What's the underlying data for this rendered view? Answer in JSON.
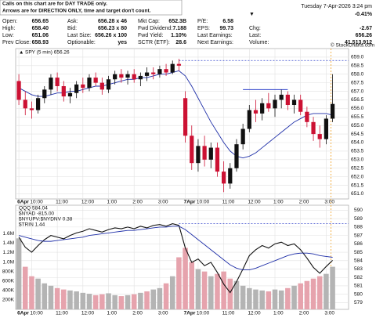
{
  "header": {
    "notice": [
      "Calls on this chart are for DAY TRADE only.",
      "Arrows are for DIRECTION ONLY, time and target don't count."
    ],
    "datetime": "Tuesday  7-Apr-2026  3:24 pm",
    "change_pct": "-0.41%",
    "fields": [
      [
        [
          "Open:",
          "656.65"
        ],
        [
          "Ask:",
          "656.28 x 46"
        ],
        [
          "Mkt Cap:",
          "652.3B"
        ],
        [
          "P/E:",
          "6.58"
        ]
      ],
      [
        [
          "High:",
          "658.40"
        ],
        [
          "Bid:",
          "656.23 x 80"
        ],
        [
          "Fwd Dividend:",
          "7.188"
        ],
        [
          "EPS:",
          "99.73"
        ]
      ],
      [
        [
          "Low:",
          "651.06"
        ],
        [
          "Last Size:",
          "656.26 x 100"
        ],
        [
          "Fwd Yield:",
          "1.10%"
        ],
        [
          "Last Earnings:",
          ""
        ]
      ],
      [
        [
          "Prev Close:",
          "658.93"
        ],
        [
          "Optionable:",
          "yes"
        ],
        [
          "SCTR (ETF):",
          "28.6"
        ],
        [
          "Next Earnings:",
          ""
        ]
      ]
    ],
    "right_fields": [
      [
        "Chg:",
        "-2.67"
      ],
      [
        "Last:",
        "656.26"
      ],
      [
        "Volume:",
        "41,513,912"
      ]
    ],
    "watermark": "© StockCharts.com"
  },
  "chart_data": [
    {
      "type": "candlestick",
      "legend": "SPY (5 min) 656.26",
      "categories": [
        "6Apr",
        null,
        "10:00",
        null,
        null,
        null,
        "11:00",
        null,
        null,
        null,
        "12:00",
        null,
        null,
        null,
        "1:00",
        null,
        null,
        null,
        "2:00",
        null,
        null,
        null,
        "3:00",
        null,
        null,
        null,
        "7Apr",
        null,
        "10:00",
        null,
        null,
        null,
        "11:00",
        null,
        null,
        null,
        "12:00",
        null,
        null,
        null,
        "1:00",
        null,
        null,
        null,
        "2:00",
        null,
        null,
        null,
        "3:00",
        null
      ],
      "open": [
        657.6,
        656.5,
        656.0,
        655.9,
        656.6,
        657.1,
        657.8,
        657.3,
        656.7,
        656.9,
        657.4,
        657.2,
        657.8,
        657.5,
        657.1,
        657.7,
        658.0,
        657.8,
        658.0,
        657.7,
        657.9,
        658.1,
        658.0,
        658.3,
        658.1,
        658.6,
        656.6,
        654.4,
        652.8,
        653.8,
        653.0,
        653.7,
        652.3,
        651.6,
        652.5,
        653.9,
        654.8,
        655.9,
        655.7,
        656.3,
        656.0,
        656.5,
        656.8,
        656.2,
        656.5,
        655.8,
        655.2,
        654.5,
        654.2,
        655.4
      ],
      "high": [
        658.0,
        657.0,
        656.4,
        656.8,
        657.3,
        658.0,
        658.1,
        657.6,
        657.2,
        657.6,
        657.8,
        658.0,
        658.1,
        657.8,
        657.9,
        658.2,
        658.3,
        658.2,
        658.3,
        658.1,
        658.4,
        658.4,
        658.5,
        658.6,
        658.8,
        658.9,
        657.0,
        655.0,
        654.2,
        654.4,
        654.0,
        654.0,
        652.9,
        652.8,
        654.2,
        655.1,
        656.2,
        656.5,
        656.6,
        656.9,
        656.8,
        657.1,
        657.0,
        656.8,
        656.8,
        656.1,
        655.5,
        655.0,
        655.6,
        658.0
      ],
      "low": [
        656.2,
        655.6,
        655.4,
        655.7,
        656.3,
        656.8,
        657.0,
        656.4,
        656.3,
        656.6,
        656.9,
        657.0,
        657.3,
        656.8,
        656.9,
        657.4,
        657.5,
        657.4,
        657.5,
        657.3,
        657.6,
        657.7,
        657.8,
        657.9,
        658.0,
        658.2,
        654.0,
        652.4,
        652.3,
        652.6,
        652.5,
        652.0,
        651.1,
        651.3,
        652.3,
        653.6,
        654.6,
        655.2,
        655.3,
        655.8,
        655.5,
        656.0,
        655.9,
        655.7,
        655.6,
        654.9,
        654.1,
        653.7,
        653.9,
        655.2
      ],
      "close": [
        656.5,
        656.0,
        655.9,
        656.6,
        657.1,
        657.8,
        657.3,
        656.7,
        656.9,
        657.4,
        657.2,
        657.8,
        657.5,
        657.1,
        657.7,
        658.0,
        657.8,
        658.0,
        657.7,
        657.9,
        658.1,
        658.0,
        658.3,
        658.1,
        658.6,
        658.5,
        654.4,
        652.8,
        653.8,
        653.0,
        653.7,
        652.3,
        651.6,
        652.5,
        653.9,
        654.8,
        655.9,
        655.7,
        656.3,
        656.0,
        656.5,
        656.8,
        656.2,
        656.5,
        655.8,
        655.2,
        654.5,
        654.2,
        655.4,
        656.26
      ],
      "up_color": "#111111",
      "down_color": "#cc1133",
      "ma": {
        "color": "#1f2fa8",
        "values": [
          657.2,
          657.0,
          656.8,
          656.7,
          656.7,
          656.8,
          656.9,
          656.9,
          657.0,
          657.0,
          657.1,
          657.2,
          657.3,
          657.3,
          657.4,
          657.5,
          657.6,
          657.7,
          657.7,
          657.8,
          657.8,
          657.9,
          658.0,
          658.0,
          658.1,
          658.2,
          657.9,
          657.3,
          656.6,
          655.9,
          655.2,
          654.6,
          654.0,
          653.5,
          653.2,
          653.1,
          653.2,
          653.4,
          653.7,
          654.0,
          654.3,
          654.6,
          654.9,
          655.2,
          655.4,
          655.6,
          655.7,
          655.7,
          655.7,
          655.6
        ]
      },
      "ref_line": 658.8,
      "trendline": 657.1,
      "ylim": [
        650.7,
        659.5
      ],
      "yticks": [
        {
          "value": 659,
          "label": "659.0"
        },
        {
          "value": 658.5,
          "label": "658.5"
        },
        {
          "value": 658,
          "label": "658.0"
        },
        {
          "value": 657.5,
          "label": "657.5"
        },
        {
          "value": 657,
          "label": "657.0"
        },
        {
          "value": 656.5,
          "label": "656.5"
        },
        {
          "value": 656,
          "label": "656.0"
        },
        {
          "value": 655.5,
          "label": "655.5"
        },
        {
          "value": 655,
          "label": "655.0"
        },
        {
          "value": 654.5,
          "label": "654.5"
        },
        {
          "value": 654,
          "label": "654.0"
        },
        {
          "value": 653.5,
          "label": "653.5"
        },
        {
          "value": 653,
          "label": "653.0"
        },
        {
          "value": 652.5,
          "label": "652.5"
        },
        {
          "value": 652,
          "label": "652.0"
        },
        {
          "value": 651.5,
          "label": "651.5"
        },
        {
          "value": 651,
          "label": "651.0"
        }
      ],
      "grid": true
    },
    {
      "type": "volume-line",
      "legend": [
        "QQQ 584.04",
        "$NYAD -815.00",
        "$NYUPV:$NYDNV 0.38",
        "$TRIN 1.44"
      ],
      "categories": [
        "6Apr",
        null,
        "10:00",
        null,
        null,
        null,
        "11:00",
        null,
        null,
        null,
        "12:00",
        null,
        null,
        null,
        "1:00",
        null,
        null,
        null,
        "2:00",
        null,
        null,
        null,
        "3:00",
        null,
        null,
        null,
        "7Apr",
        null,
        "10:00",
        null,
        null,
        null,
        "11:00",
        null,
        null,
        null,
        "12:00",
        null,
        null,
        null,
        "1:00",
        null,
        null,
        null,
        "2:00",
        null,
        null,
        null,
        "3:00",
        null
      ],
      "series": [
        {
          "kind": "bar",
          "color": "#b4b4b4",
          "down_color": "#e6a3ad",
          "values": [
            1500000,
            900000,
            700000,
            650000,
            550000,
            500000,
            450000,
            420000,
            400000,
            380000,
            350000,
            330000,
            300000,
            320000,
            340000,
            300000,
            280000,
            300000,
            320000,
            350000,
            380000,
            420000,
            450000,
            550000,
            700000,
            1100000,
            1300000,
            1000000,
            850000,
            800000,
            700000,
            750000,
            800000,
            650000,
            600000,
            500000,
            450000,
            420000,
            400000,
            380000,
            420000,
            400000,
            450000,
            500000,
            550000,
            600000,
            650000,
            700000,
            750000,
            900000
          ]
        },
        {
          "kind": "line",
          "axis": "y2",
          "color": "#111111",
          "values": [
            586.8,
            585.6,
            585.0,
            585.8,
            586.5,
            587.0,
            586.8,
            586.6,
            587.0,
            587.3,
            587.5,
            587.8,
            587.6,
            587.4,
            587.7,
            587.9,
            587.8,
            588.0,
            587.8,
            588.1,
            587.9,
            588.2,
            588.3,
            588.1,
            588.4,
            588.2,
            585.5,
            583.8,
            584.2,
            583.4,
            583.8,
            582.6,
            581.2,
            580.2,
            581.5,
            583.0,
            584.6,
            585.3,
            585.8,
            585.5,
            586.0,
            586.2,
            585.8,
            586.0,
            585.3,
            584.3,
            583.2,
            582.5,
            583.3,
            584.04
          ]
        },
        {
          "kind": "line",
          "axis": "y2",
          "color": "#1f2fa8",
          "values": [
            587.0,
            586.8,
            586.6,
            586.4,
            586.3,
            586.3,
            586.4,
            586.5,
            586.6,
            586.7,
            586.8,
            587.0,
            587.1,
            587.2,
            587.3,
            587.4,
            587.5,
            587.6,
            587.6,
            587.7,
            587.8,
            587.9,
            588.0,
            588.0,
            588.1,
            588.1,
            587.7,
            587.1,
            586.5,
            585.9,
            585.3,
            584.7,
            584.1,
            583.5,
            583.1,
            582.9,
            582.9,
            583.1,
            583.4,
            583.7,
            584.0,
            584.3,
            584.6,
            584.8,
            584.9,
            584.9,
            584.8,
            584.6,
            584.5,
            584.4
          ]
        }
      ],
      "ref_line": 588.4,
      "ylim": [
        0,
        2200000
      ],
      "yticks": [
        {
          "value": 200000,
          "label": "200K"
        },
        {
          "value": 400000,
          "label": "400K"
        },
        {
          "value": 600000,
          "label": "600K"
        },
        {
          "value": 800000,
          "label": "800K"
        },
        {
          "value": 1000000,
          "label": "1.0M"
        },
        {
          "value": 1200000,
          "label": "1.2M"
        },
        {
          "value": 1400000,
          "label": "1.4M"
        },
        {
          "value": 1600000,
          "label": "1.6M"
        }
      ],
      "y2lim": [
        578.2,
        590.6
      ],
      "y2ticks": [
        579,
        580,
        581,
        582,
        583,
        584,
        585,
        586,
        587,
        588,
        589,
        590
      ],
      "grid": true
    }
  ]
}
